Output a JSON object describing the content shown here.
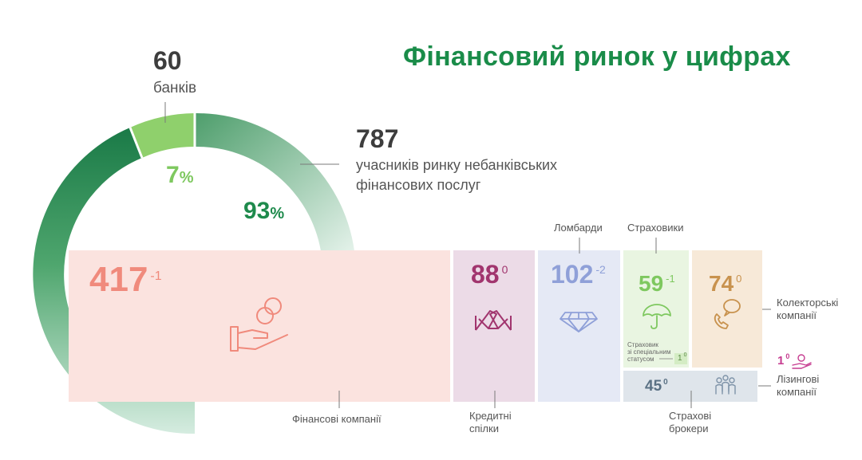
{
  "title": "Фінансовий ринок у цифрах",
  "banks": {
    "value": "60",
    "label": "банків",
    "percent": "7",
    "percent_sign": "%"
  },
  "nbfs": {
    "value": "787",
    "label_line1": "учасників ринку небанківських",
    "label_line2": "фінансових послуг",
    "percent": "93",
    "percent_sign": "%"
  },
  "colors": {
    "title": "#1a8c49",
    "banks_segment": "#8fd06c",
    "nbfs_segment_dark": "#1e7d4b",
    "finance": "#f08a7c",
    "credit": "#a1356e",
    "pawn": "#8fa0d8",
    "insurers": "#7ec85f",
    "collectors": "#c8924e",
    "brokers": "#5a7184",
    "leasing": "#c63c90"
  },
  "chart_data": {
    "type": "donut",
    "title": "Фінансовий ринок у цифрах",
    "slices": [
      {
        "name": "банків",
        "value": 60,
        "percent": 7
      },
      {
        "name": "учасників ринку небанківських фінансових послуг",
        "value": 787,
        "percent": 93
      }
    ],
    "breakdown": [
      {
        "key": "finance",
        "label": "Фінансові компанії",
        "value": 417,
        "change": "-1",
        "icon": "hand-coins-icon"
      },
      {
        "key": "credit",
        "label_line1": "Кредитні",
        "label_line2": "спілки",
        "value": 88,
        "change": "0",
        "icon": "handshake-icon"
      },
      {
        "key": "pawn",
        "label": "Ломбарди",
        "value": 102,
        "change": "-2",
        "icon": "diamond-icon"
      },
      {
        "key": "insurers",
        "label": "Страховики",
        "value": 59,
        "change": "-1",
        "icon": "umbrella-icon",
        "special": {
          "line1": "Страховик",
          "line2": "зі спеціальним",
          "line3": "статусом",
          "value": 1,
          "change": "0"
        }
      },
      {
        "key": "collectors",
        "label_line1": "Колекторські",
        "label_line2": "компанії",
        "value": 74,
        "change": "0",
        "icon": "phone-chat-icon"
      },
      {
        "key": "brokers",
        "label_line1": "Страхові",
        "label_line2": "брокери",
        "value": 45,
        "change": "0",
        "icon": "people-icon"
      },
      {
        "key": "leasing",
        "label_line1": "Лізингові",
        "label_line2": "компанії",
        "value": 1,
        "change": "0",
        "icon": "hand-coin-icon"
      }
    ]
  }
}
